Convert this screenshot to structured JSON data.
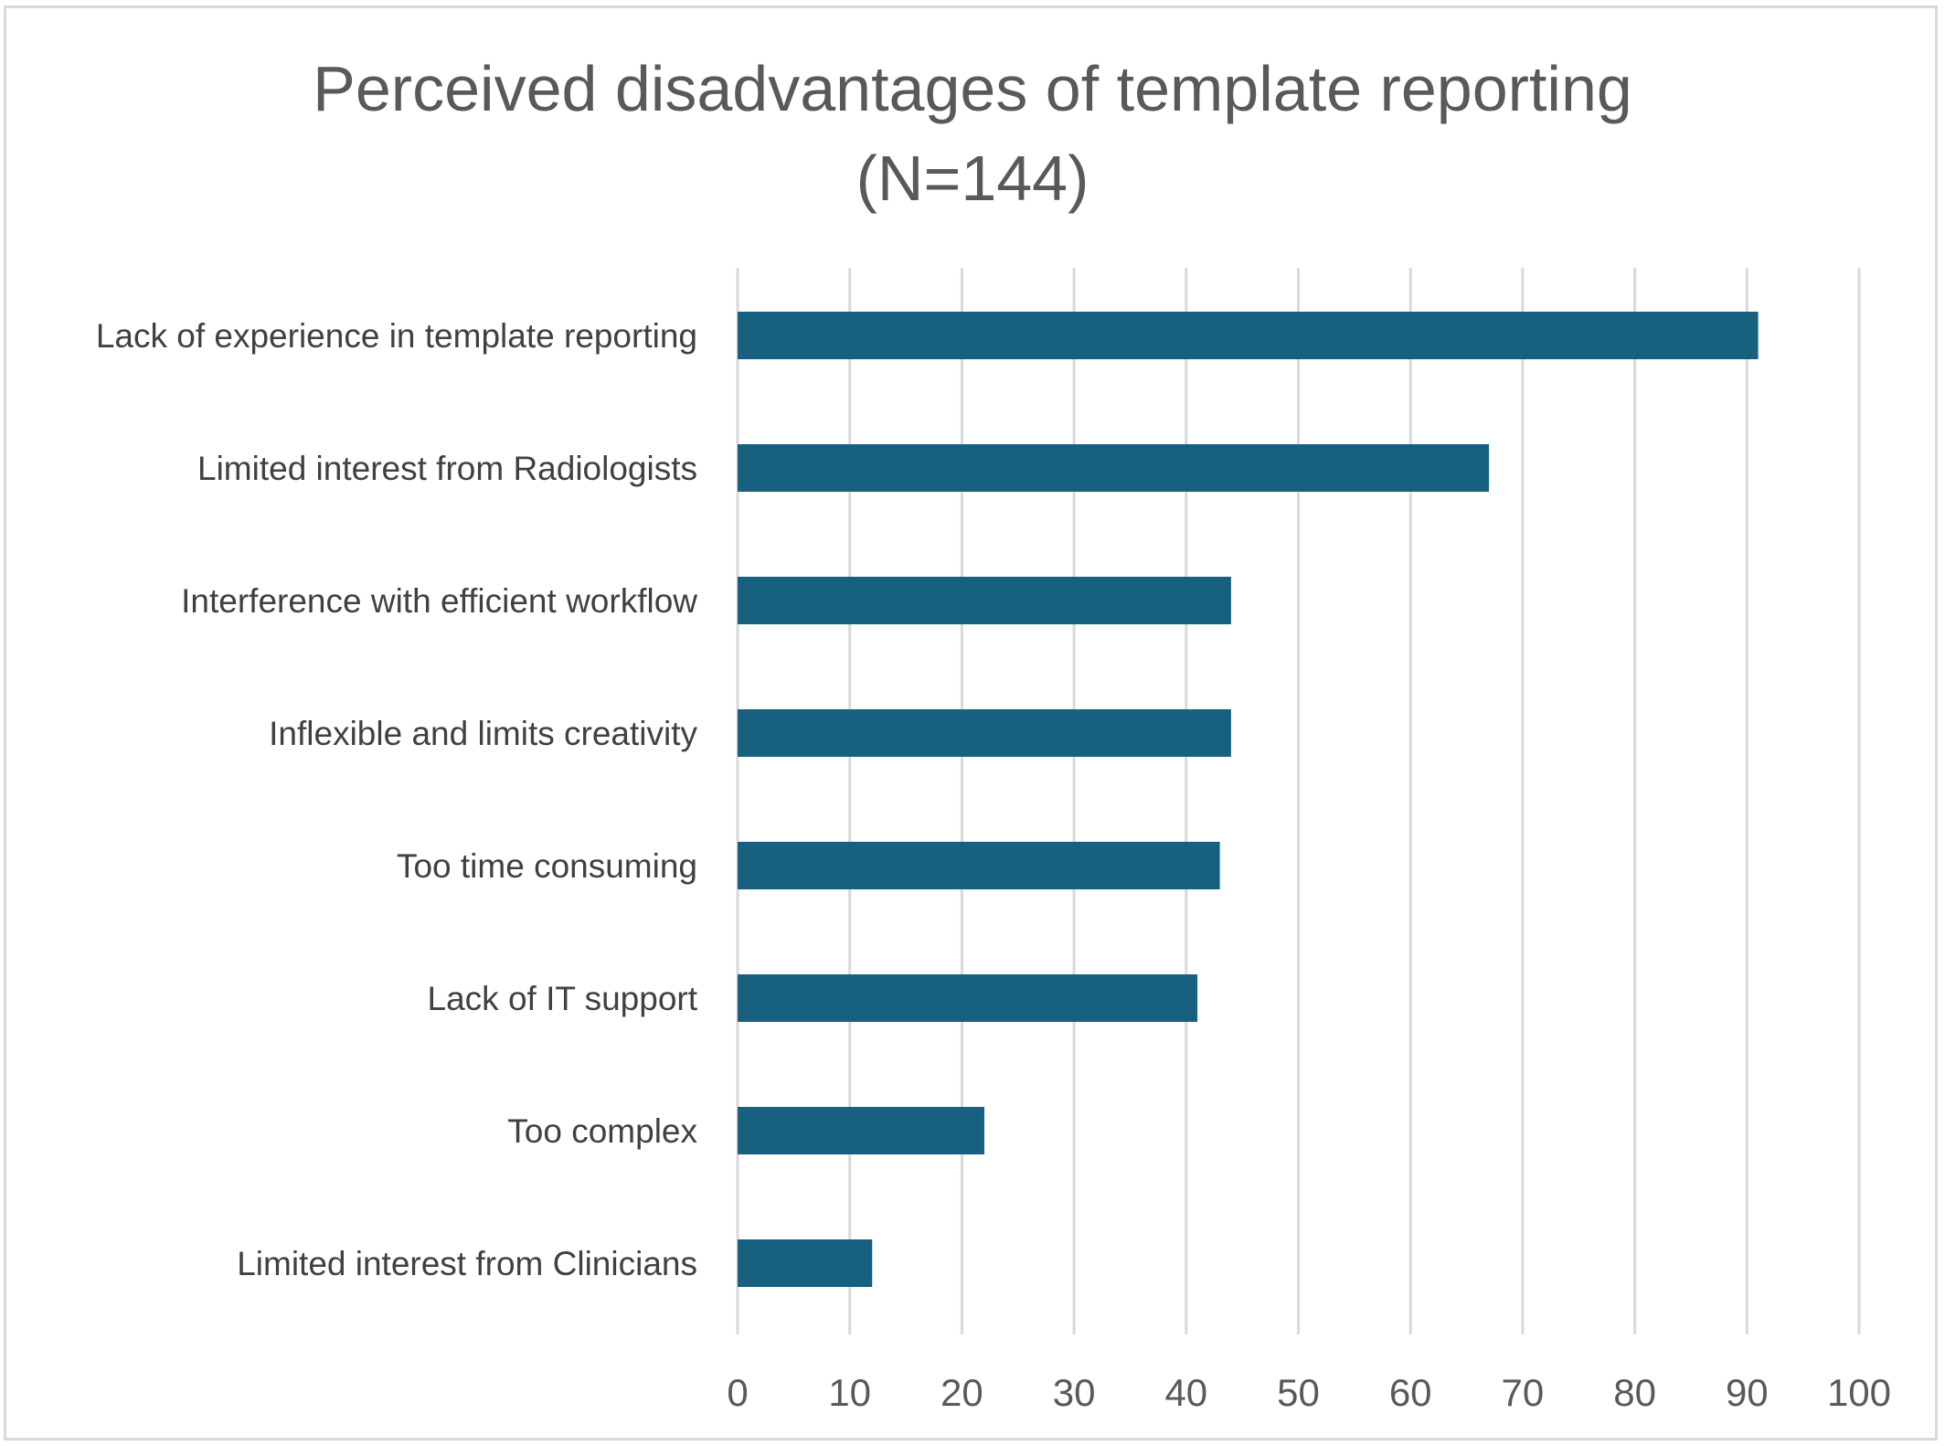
{
  "chart_data": {
    "type": "bar",
    "orientation": "horizontal",
    "title": "Perceived disadvantages of template reporting",
    "subtitle": "(N=144)",
    "xlabel": "",
    "ylabel": "",
    "categories": [
      "Lack of experience in template reporting",
      "Limited interest from Radiologists",
      "Interference with efficient workflow",
      "Inflexible and limits creativity",
      "Too time consuming",
      "Lack of IT support",
      "Too complex",
      "Limited interest from Clinicians"
    ],
    "values": [
      91,
      67,
      44,
      44,
      43,
      41,
      22,
      12
    ],
    "xlim": [
      0,
      100
    ],
    "xticks": [
      "0",
      "10",
      "20",
      "30",
      "40",
      "50",
      "60",
      "70",
      "80",
      "90",
      "100"
    ],
    "grid": "vertical",
    "legend": "none",
    "bar_color": "#17607f",
    "grid_color": "#d9d9d9"
  }
}
